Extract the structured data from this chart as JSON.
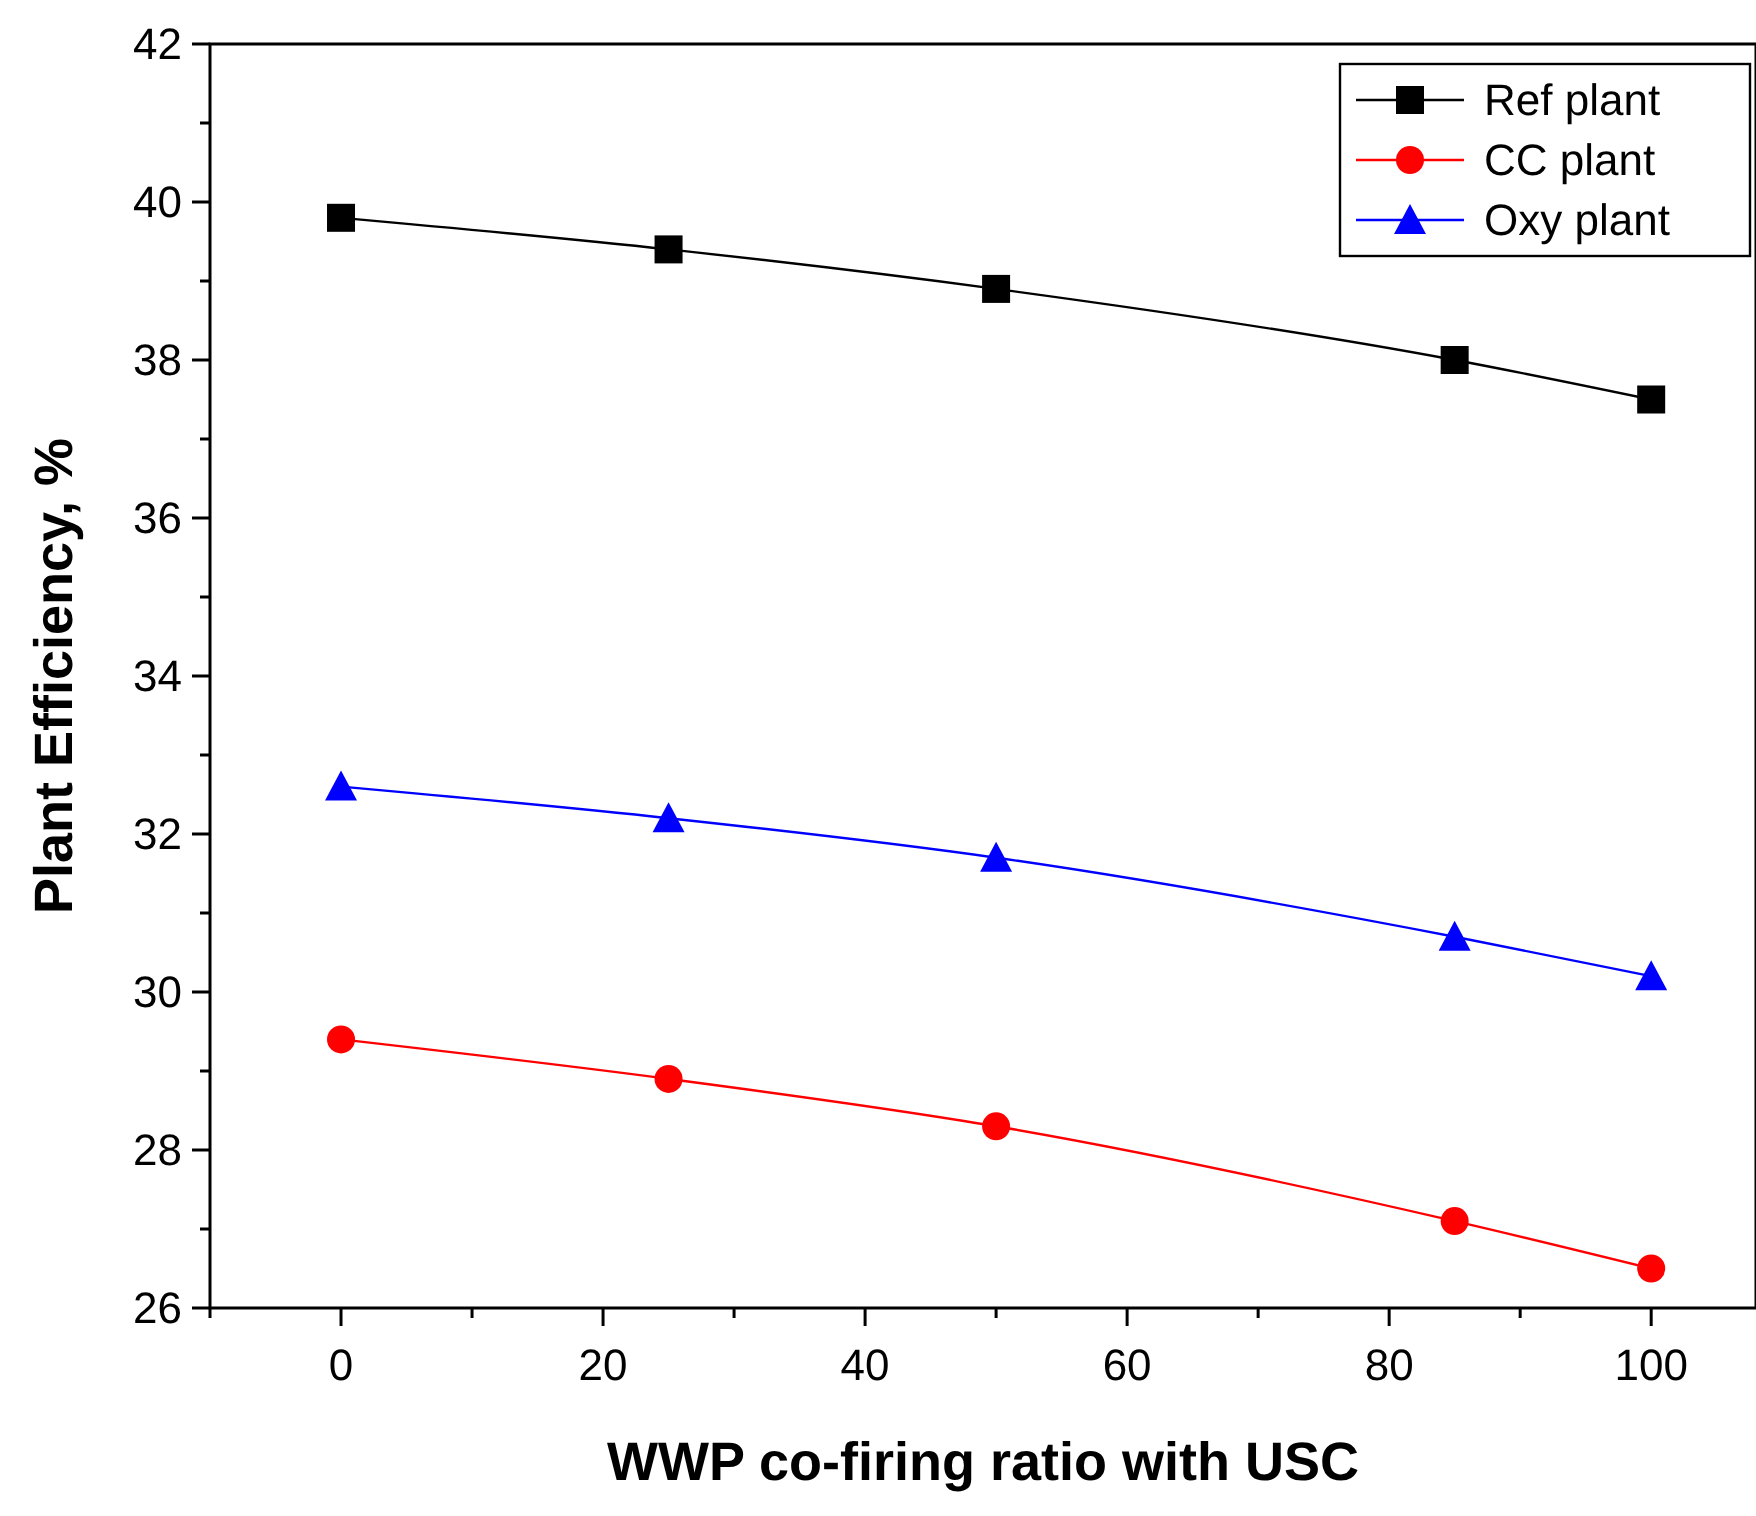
{
  "chart_data": {
    "type": "line",
    "xlabel": "WWP co-firing ratio with USC",
    "ylabel": "Plant Efficiency, %",
    "x": [
      0,
      25,
      50,
      85,
      100
    ],
    "series": [
      {
        "name": "Ref plant",
        "color": "#000000",
        "marker": "square",
        "values": [
          39.8,
          39.4,
          38.9,
          38.0,
          37.5
        ]
      },
      {
        "name": "CC plant",
        "color": "#ff0000",
        "marker": "circle",
        "values": [
          29.4,
          28.9,
          28.3,
          27.1,
          26.5
        ]
      },
      {
        "name": "Oxy plant",
        "color": "#0000ff",
        "marker": "triangle",
        "values": [
          32.6,
          32.2,
          31.7,
          30.7,
          30.2
        ]
      }
    ],
    "xlim": [
      -10,
      108
    ],
    "ylim": [
      26,
      42
    ],
    "xticks": [
      {
        "value": -10,
        "label": null
      },
      0,
      {
        "value": 10,
        "label": null
      },
      20,
      {
        "value": 30,
        "label": null
      },
      40,
      {
        "value": 50,
        "label": null
      },
      60,
      {
        "value": 70,
        "label": null
      },
      80,
      {
        "value": 90,
        "label": null
      },
      100
    ],
    "yticks": [
      26,
      {
        "value": 27,
        "label": null
      },
      28,
      {
        "value": 29,
        "label": null
      },
      30,
      {
        "value": 31,
        "label": null
      },
      32,
      {
        "value": 33,
        "label": null
      },
      34,
      {
        "value": 35,
        "label": null
      },
      36,
      {
        "value": 37,
        "label": null
      },
      38,
      {
        "value": 39,
        "label": null
      },
      40,
      {
        "value": 41,
        "label": null
      },
      42
    ],
    "grid": false,
    "legend": "top right"
  }
}
